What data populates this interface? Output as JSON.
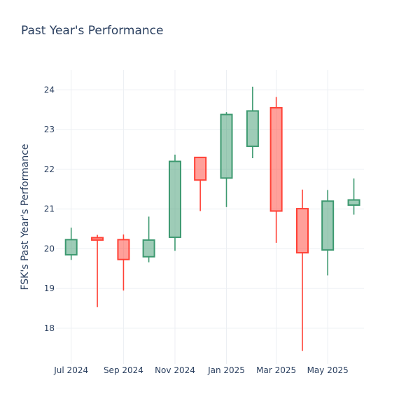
{
  "chart_data": {
    "type": "candlestick",
    "title": "Past Year's Performance",
    "ylabel": "FSK's Past Year's Performance",
    "xlabel": "",
    "ylim": [
      17.1,
      24.5
    ],
    "yticks": [
      18,
      19,
      20,
      21,
      22,
      23,
      24
    ],
    "xticks": [
      {
        "date": "2024-07-01",
        "label": "Jul 2024"
      },
      {
        "date": "2024-09-01",
        "label": "Sep 2024"
      },
      {
        "date": "2024-11-01",
        "label": "Nov 2024"
      },
      {
        "date": "2025-01-01",
        "label": "Jan 2025"
      },
      {
        "date": "2025-03-01",
        "label": "Mar 2025"
      },
      {
        "date": "2025-05-01",
        "label": "May 2025"
      }
    ],
    "xlim": [
      "2024-06-13",
      "2025-06-13"
    ],
    "grid": true,
    "colors": {
      "increasing": "#3d9970",
      "decreasing": "#ff4136"
    },
    "candles": [
      {
        "date": "2024-07-01",
        "open": 19.85,
        "high": 20.53,
        "low": 19.72,
        "close": 20.23
      },
      {
        "date": "2024-08-01",
        "open": 20.28,
        "high": 20.35,
        "low": 18.53,
        "close": 20.22
      },
      {
        "date": "2024-09-01",
        "open": 20.23,
        "high": 20.36,
        "low": 18.95,
        "close": 19.73
      },
      {
        "date": "2024-10-01",
        "open": 19.8,
        "high": 20.81,
        "low": 19.66,
        "close": 20.22
      },
      {
        "date": "2024-11-01",
        "open": 20.29,
        "high": 22.37,
        "low": 19.95,
        "close": 22.2
      },
      {
        "date": "2024-12-01",
        "open": 22.3,
        "high": 22.3,
        "low": 20.95,
        "close": 21.73
      },
      {
        "date": "2025-01-01",
        "open": 21.78,
        "high": 23.44,
        "low": 21.05,
        "close": 23.38
      },
      {
        "date": "2025-02-01",
        "open": 22.58,
        "high": 24.08,
        "low": 22.28,
        "close": 23.47
      },
      {
        "date": "2025-03-01",
        "open": 23.55,
        "high": 23.82,
        "low": 20.15,
        "close": 20.95
      },
      {
        "date": "2025-04-01",
        "open": 21.01,
        "high": 21.49,
        "low": 17.43,
        "close": 19.9
      },
      {
        "date": "2025-05-01",
        "open": 19.97,
        "high": 21.48,
        "low": 19.33,
        "close": 21.2
      },
      {
        "date": "2025-06-01",
        "open": 21.1,
        "high": 21.77,
        "low": 20.86,
        "close": 21.23
      }
    ]
  }
}
